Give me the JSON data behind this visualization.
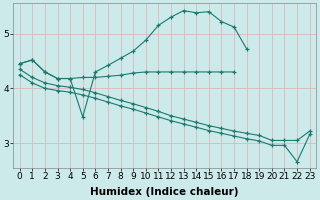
{
  "xlabel": "Humidex (Indice chaleur)",
  "bg_color": "#cdeaea",
  "grid_color": "#dbb8b8",
  "line_color": "#1a7a6e",
  "xlim": [
    -0.5,
    23.5
  ],
  "ylim": [
    2.55,
    5.55
  ],
  "yticks": [
    3,
    4,
    5
  ],
  "xticks": [
    0,
    1,
    2,
    3,
    4,
    5,
    6,
    7,
    8,
    9,
    10,
    11,
    12,
    13,
    14,
    15,
    16,
    17,
    18,
    19,
    20,
    21,
    22,
    23
  ],
  "line_flat_x": [
    0,
    1,
    2,
    3,
    4,
    5,
    6,
    7,
    8,
    9,
    10,
    11,
    12,
    13,
    14,
    15,
    16,
    17
  ],
  "line_flat_y": [
    4.45,
    4.52,
    4.3,
    4.18,
    4.18,
    4.2,
    4.2,
    4.22,
    4.24,
    4.28,
    4.3,
    4.3,
    4.3,
    4.3,
    4.3,
    4.3,
    4.3,
    4.3
  ],
  "line_curve_x": [
    0,
    1,
    2,
    3,
    4,
    5,
    6,
    7,
    8,
    9,
    10,
    11,
    12,
    13,
    14,
    15,
    16,
    17,
    18
  ],
  "line_curve_y": [
    4.45,
    4.52,
    4.3,
    4.18,
    4.18,
    3.48,
    4.3,
    4.42,
    4.55,
    4.68,
    4.88,
    5.15,
    5.3,
    5.42,
    5.38,
    5.4,
    5.22,
    5.12,
    4.72
  ],
  "line_dec1_x": [
    0,
    1,
    2,
    3,
    4,
    5,
    6,
    7,
    8,
    9,
    10,
    11,
    12,
    13,
    14,
    15,
    16,
    17,
    18,
    19,
    20,
    21,
    22,
    23
  ],
  "line_dec1_y": [
    4.35,
    4.2,
    4.1,
    4.05,
    4.02,
    3.98,
    3.92,
    3.85,
    3.78,
    3.72,
    3.65,
    3.58,
    3.5,
    3.44,
    3.38,
    3.32,
    3.27,
    3.22,
    3.18,
    3.14,
    3.05,
    3.05,
    3.05,
    3.22
  ],
  "line_dec2_x": [
    0,
    1,
    2,
    3,
    4,
    5,
    6,
    7,
    8,
    9,
    10,
    11,
    12,
    13,
    14,
    15,
    16,
    17,
    18,
    19,
    20,
    21,
    22,
    23
  ],
  "line_dec2_y": [
    4.25,
    4.1,
    4.0,
    3.96,
    3.93,
    3.88,
    3.82,
    3.75,
    3.68,
    3.62,
    3.55,
    3.48,
    3.41,
    3.35,
    3.29,
    3.23,
    3.18,
    3.13,
    3.08,
    3.04,
    2.96,
    2.96,
    2.66,
    3.16
  ],
  "fontsize_label": 7.5,
  "fontsize_tick": 6.5
}
